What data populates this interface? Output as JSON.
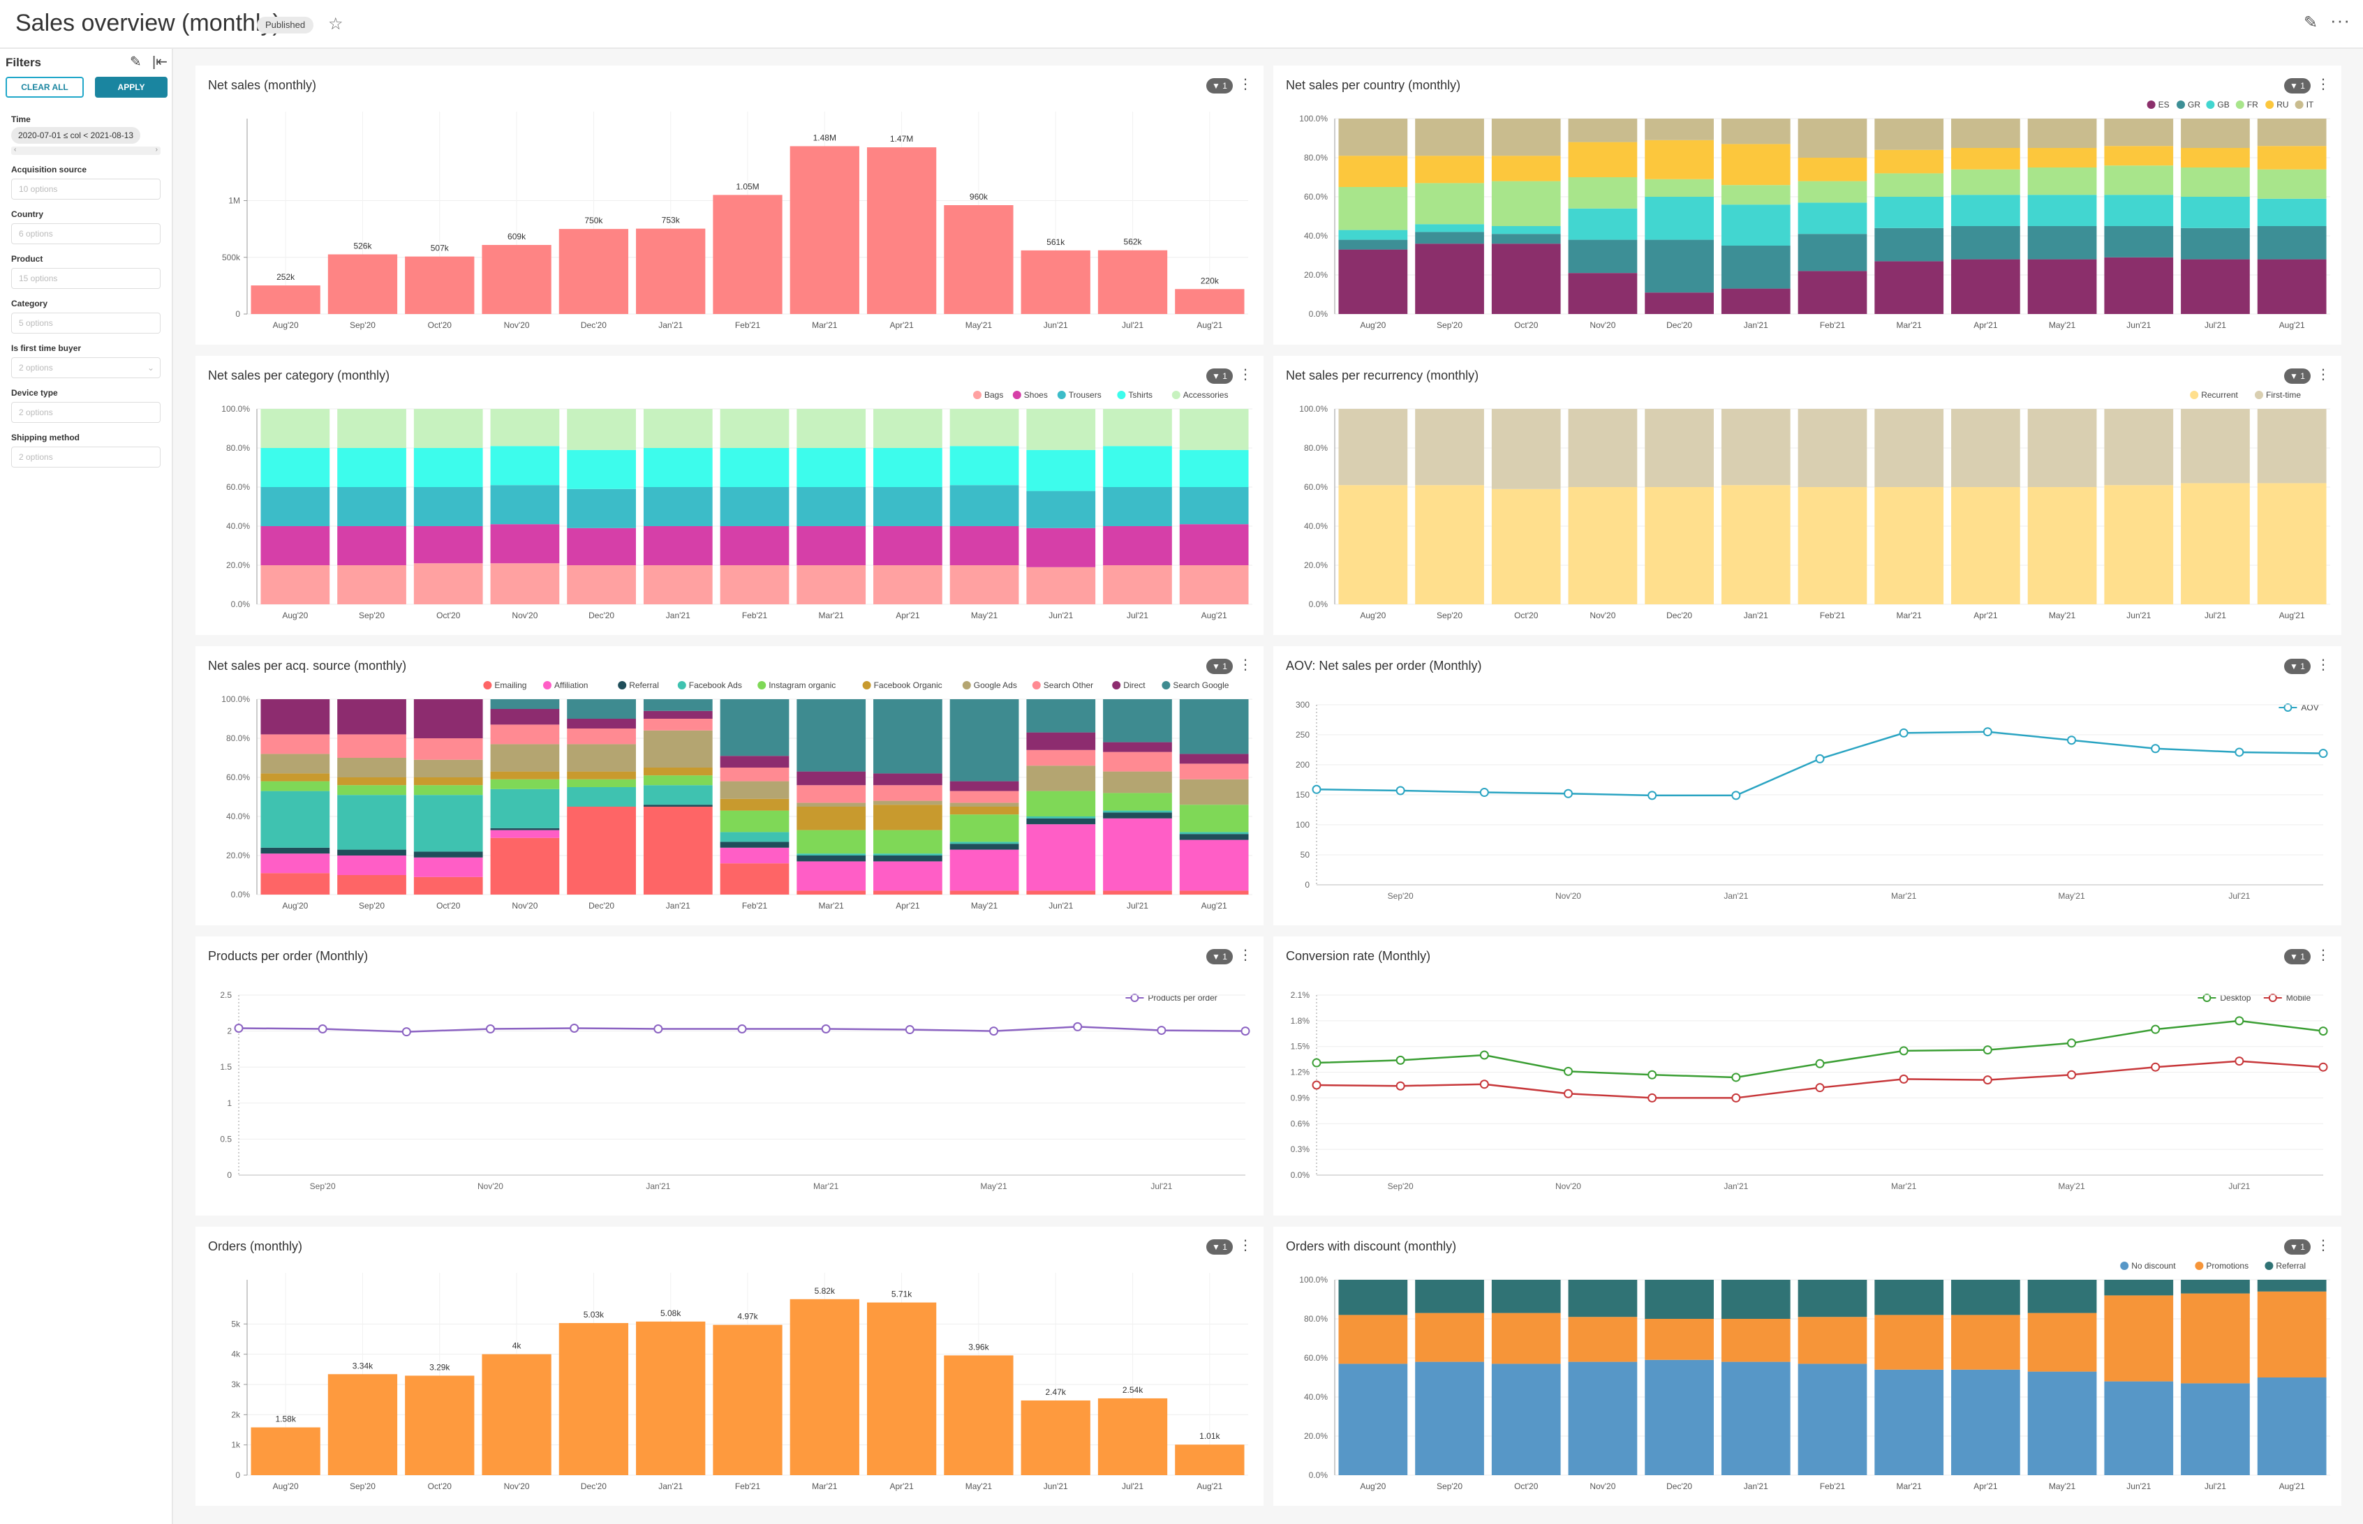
{
  "header": {
    "title": "Sales overview (monthly)",
    "status": "Published",
    "star_icon": "star-icon",
    "edit_icon": "pencil-icon",
    "more_icon": "ellipsis-icon"
  },
  "filters": {
    "title": "Filters",
    "clear_label": "CLEAR ALL",
    "apply_label": "APPLY",
    "items": [
      {
        "label": "Time",
        "value": "2020-07-01 ≤ col < 2021-08-13"
      },
      {
        "label": "Acquisition source",
        "placeholder": "10 options"
      },
      {
        "label": "Country",
        "placeholder": "6 options"
      },
      {
        "label": "Product",
        "placeholder": "15 options"
      },
      {
        "label": "Category",
        "placeholder": "5 options"
      },
      {
        "label": "Is first time buyer",
        "placeholder": "2 options"
      },
      {
        "label": "Device type",
        "placeholder": "2 options"
      },
      {
        "label": "Shipping method",
        "placeholder": "2 options"
      }
    ]
  },
  "panel_badge": "1",
  "chart_data": [
    {
      "id": "net-sales",
      "type": "bar",
      "title": "Net sales (monthly)",
      "categories": [
        "Aug'20",
        "Sep'20",
        "Oct'20",
        "Nov'20",
        "Dec'20",
        "Jan'21",
        "Feb'21",
        "Mar'21",
        "Apr'21",
        "May'21",
        "Jun'21",
        "Jul'21",
        "Aug'21"
      ],
      "values": [
        252000,
        526000,
        507000,
        609000,
        750000,
        753000,
        1050000,
        1480000,
        1470000,
        960000,
        561000,
        562000,
        220000
      ],
      "labels": [
        "252k",
        "526k",
        "507k",
        "609k",
        "750k",
        "753k",
        "1.05M",
        "1.48M",
        "1.47M",
        "960k",
        "561k",
        "562k",
        "220k"
      ],
      "ylim": [
        0,
        1600000
      ],
      "yticks": [
        0,
        500000,
        1000000
      ],
      "ytick_labels": [
        "0",
        "500k",
        "1M"
      ],
      "color": "#fe8484"
    },
    {
      "id": "country",
      "type": "bar",
      "stacked": true,
      "title": "Net sales per country (monthly)",
      "categories": [
        "Aug'20",
        "Sep'20",
        "Oct'20",
        "Nov'20",
        "Dec'20",
        "Jan'21",
        "Feb'21",
        "Mar'21",
        "Apr'21",
        "May'21",
        "Jun'21",
        "Jul'21",
        "Aug'21"
      ],
      "legend": "top-right",
      "yticks": [
        "0.0%",
        "20.0%",
        "40.0%",
        "60.0%",
        "80.0%",
        "100.0%"
      ],
      "series": [
        {
          "name": "ES",
          "color": "#8b2f6b",
          "values": [
            33,
            36,
            36,
            21,
            11,
            13,
            22,
            27,
            28,
            28,
            29,
            28,
            28
          ]
        },
        {
          "name": "GR",
          "color": "#3d8f96",
          "values": [
            5,
            6,
            5,
            17,
            27,
            22,
            19,
            17,
            17,
            17,
            16,
            16,
            17
          ]
        },
        {
          "name": "GB",
          "color": "#42d6d0",
          "values": [
            5,
            4,
            4,
            16,
            22,
            21,
            16,
            16,
            16,
            16,
            16,
            16,
            14
          ]
        },
        {
          "name": "FR",
          "color": "#a8e58b",
          "values": [
            22,
            21,
            23,
            16,
            9,
            10,
            11,
            12,
            13,
            14,
            15,
            15,
            15
          ]
        },
        {
          "name": "RU",
          "color": "#fcc73d",
          "values": [
            16,
            14,
            13,
            18,
            20,
            21,
            12,
            12,
            11,
            10,
            10,
            10,
            12
          ]
        },
        {
          "name": "IT",
          "color": "#c9bc8e",
          "values": [
            19,
            19,
            19,
            12,
            11,
            13,
            20,
            16,
            15,
            15,
            14,
            15,
            14
          ]
        }
      ]
    },
    {
      "id": "category",
      "type": "bar",
      "stacked": true,
      "title": "Net sales per category (monthly)",
      "categories": [
        "Aug'20",
        "Sep'20",
        "Oct'20",
        "Nov'20",
        "Dec'20",
        "Jan'21",
        "Feb'21",
        "Mar'21",
        "Apr'21",
        "May'21",
        "Jun'21",
        "Jul'21",
        "Aug'21"
      ],
      "legend": "top-right",
      "yticks": [
        "0.0%",
        "20.0%",
        "40.0%",
        "60.0%",
        "80.0%",
        "100.0%"
      ],
      "series": [
        {
          "name": "Bags",
          "color": "#ffa1a1",
          "values": [
            20,
            20,
            21,
            21,
            20,
            20,
            20,
            20,
            20,
            20,
            19,
            20,
            20
          ]
        },
        {
          "name": "Shoes",
          "color": "#d63fa8",
          "values": [
            20,
            20,
            19,
            20,
            19,
            20,
            20,
            20,
            20,
            20,
            20,
            20,
            21
          ]
        },
        {
          "name": "Trousers",
          "color": "#3cbcc8",
          "values": [
            20,
            20,
            20,
            20,
            20,
            20,
            20,
            20,
            20,
            21,
            19,
            20,
            19
          ]
        },
        {
          "name": "Tshirts",
          "color": "#3dfcec",
          "values": [
            20,
            20,
            20,
            20,
            20,
            20,
            20,
            20,
            20,
            20,
            21,
            21,
            19
          ]
        },
        {
          "name": "Accessories",
          "color": "#c7f2bf",
          "values": [
            20,
            20,
            20,
            19,
            21,
            20,
            20,
            20,
            20,
            19,
            21,
            19,
            21
          ]
        }
      ]
    },
    {
      "id": "recurrency",
      "type": "bar",
      "stacked": true,
      "title": "Net sales per recurrency (monthly)",
      "categories": [
        "Aug'20",
        "Sep'20",
        "Oct'20",
        "Nov'20",
        "Dec'20",
        "Jan'21",
        "Feb'21",
        "Mar'21",
        "Apr'21",
        "May'21",
        "Jun'21",
        "Jul'21",
        "Aug'21"
      ],
      "legend": "top-right",
      "yticks": [
        "0.0%",
        "20.0%",
        "40.0%",
        "60.0%",
        "80.0%",
        "100.0%"
      ],
      "series": [
        {
          "name": "Recurrent",
          "color": "#ffdf8d",
          "values": [
            61,
            61,
            59,
            60,
            60,
            61,
            60,
            60,
            60,
            60,
            61,
            62,
            62
          ]
        },
        {
          "name": "First-time",
          "color": "#d9cfb1",
          "values": [
            39,
            39,
            41,
            40,
            40,
            39,
            40,
            40,
            40,
            40,
            39,
            38,
            38
          ]
        }
      ]
    },
    {
      "id": "acq",
      "type": "bar",
      "stacked": true,
      "title": "Net sales per acq. source (monthly)",
      "categories": [
        "Aug'20",
        "Sep'20",
        "Oct'20",
        "Nov'20",
        "Dec'20",
        "Jan'21",
        "Feb'21",
        "Mar'21",
        "Apr'21",
        "May'21",
        "Jun'21",
        "Jul'21",
        "Aug'21"
      ],
      "legend": "top-right",
      "yticks": [
        "0.0%",
        "20.0%",
        "40.0%",
        "60.0%",
        "80.0%",
        "100.0%"
      ],
      "series": [
        {
          "name": "Emailing",
          "color": "#fe6566",
          "values": [
            11,
            10,
            9,
            29,
            45,
            45,
            16,
            2,
            2,
            2,
            2,
            2,
            2
          ]
        },
        {
          "name": "Affiliation",
          "color": "#ff5ec6",
          "values": [
            10,
            10,
            10,
            4,
            0,
            0,
            8,
            15,
            15,
            21,
            34,
            37,
            26
          ]
        },
        {
          "name": "Referral",
          "color": "#1f4e5a",
          "values": [
            3,
            3,
            3,
            1,
            0,
            1,
            3,
            3,
            3,
            3,
            3,
            3,
            3
          ]
        },
        {
          "name": "Facebook Ads",
          "color": "#3fc2b0",
          "values": [
            29,
            28,
            29,
            20,
            10,
            10,
            5,
            1,
            1,
            1,
            1,
            1,
            1
          ]
        },
        {
          "name": "Instagram organic",
          "color": "#7fd857",
          "values": [
            5,
            5,
            5,
            5,
            4,
            5,
            11,
            12,
            12,
            14,
            13,
            9,
            14
          ]
        },
        {
          "name": "Facebook Organic",
          "color": "#c89a2e",
          "values": [
            4,
            4,
            4,
            4,
            4,
            4,
            6,
            12,
            13,
            4,
            0,
            0,
            0
          ]
        },
        {
          "name": "Google Ads",
          "color": "#b4a571",
          "values": [
            10,
            10,
            9,
            14,
            14,
            19,
            9,
            2,
            2,
            2,
            13,
            11,
            13
          ]
        },
        {
          "name": "Search Other",
          "color": "#ff8a92",
          "values": [
            10,
            12,
            11,
            10,
            8,
            6,
            7,
            9,
            8,
            6,
            8,
            10,
            8
          ]
        },
        {
          "name": "Direct",
          "color": "#8d2c6f",
          "values": [
            18,
            18,
            20,
            8,
            5,
            4,
            6,
            7,
            6,
            5,
            9,
            5,
            5
          ]
        },
        {
          "name": "Search Google",
          "color": "#3e8b90",
          "values": [
            0,
            0,
            0,
            5,
            10,
            6,
            29,
            37,
            38,
            42,
            17,
            22,
            28
          ]
        }
      ]
    },
    {
      "id": "aov",
      "type": "line",
      "title": "AOV: Net sales per order (Monthly)",
      "legend": "top-right",
      "ylim": [
        0,
        300
      ],
      "yticks": [
        0,
        50,
        100,
        150,
        200,
        250,
        300
      ],
      "xticks": [
        "Sep'20",
        "Nov'20",
        "Jan'21",
        "Mar'21",
        "May'21",
        "Jul'21"
      ],
      "series": [
        {
          "name": "AOV",
          "color": "#2aa4c2",
          "values": [
            159,
            157,
            154,
            152,
            149,
            149,
            210,
            253,
            255,
            241,
            227,
            221,
            219
          ]
        }
      ]
    },
    {
      "id": "products",
      "type": "line",
      "title": "Products per order (Monthly)",
      "legend": "top-right",
      "ylim": [
        0,
        2.5
      ],
      "yticks": [
        0,
        0.5,
        1,
        1.5,
        2,
        2.5
      ],
      "ytick_labels": [
        "0",
        "0.5",
        "1",
        "1.5",
        "2",
        "2.5"
      ],
      "xticks": [
        "Sep'20",
        "Nov'20",
        "Jan'21",
        "Mar'21",
        "May'21",
        "Jul'21"
      ],
      "series": [
        {
          "name": "Products per order",
          "color": "#8b62c2",
          "values": [
            2.04,
            2.03,
            1.99,
            2.03,
            2.04,
            2.03,
            2.03,
            2.03,
            2.02,
            2.0,
            2.06,
            2.01,
            2.0
          ]
        }
      ]
    },
    {
      "id": "conversion",
      "type": "line",
      "title": "Conversion rate (Monthly)",
      "legend": "top-right",
      "ylim": [
        0,
        2.1
      ],
      "yticks": [
        0,
        0.3,
        0.6,
        0.9,
        1.2,
        1.5,
        1.8,
        2.1
      ],
      "ytick_labels": [
        "0.0%",
        "0.3%",
        "0.6%",
        "0.9%",
        "1.2%",
        "1.5%",
        "1.8%",
        "2.1%"
      ],
      "xticks": [
        "Sep'20",
        "Nov'20",
        "Jan'21",
        "Mar'21",
        "May'21",
        "Jul'21"
      ],
      "series": [
        {
          "name": "Desktop",
          "color": "#3a9e33",
          "values": [
            1.31,
            1.34,
            1.4,
            1.21,
            1.17,
            1.14,
            1.3,
            1.45,
            1.46,
            1.54,
            1.7,
            1.8,
            1.68
          ]
        },
        {
          "name": "Mobile",
          "color": "#c7373a",
          "values": [
            1.05,
            1.04,
            1.06,
            0.95,
            0.9,
            0.9,
            1.02,
            1.12,
            1.11,
            1.17,
            1.26,
            1.33,
            1.26
          ]
        }
      ]
    },
    {
      "id": "orders",
      "type": "bar",
      "title": "Orders (monthly)",
      "categories": [
        "Aug'20",
        "Sep'20",
        "Oct'20",
        "Nov'20",
        "Dec'20",
        "Jan'21",
        "Feb'21",
        "Mar'21",
        "Apr'21",
        "May'21",
        "Jun'21",
        "Jul'21",
        "Aug'21"
      ],
      "values": [
        1580,
        3340,
        3290,
        4000,
        5030,
        5080,
        4970,
        5820,
        5710,
        3960,
        2470,
        2540,
        1010
      ],
      "labels": [
        "1.58k",
        "3.34k",
        "3.29k",
        "4k",
        "5.03k",
        "5.08k",
        "4.97k",
        "5.82k",
        "5.71k",
        "3.96k",
        "2.47k",
        "2.54k",
        "1.01k"
      ],
      "ylim": [
        0,
        6000
      ],
      "yticks": [
        0,
        1000,
        2000,
        3000,
        4000,
        5000
      ],
      "ytick_labels": [
        "0",
        "1k",
        "2k",
        "3k",
        "4k",
        "5k"
      ],
      "color": "#fe9a3e"
    },
    {
      "id": "discount",
      "type": "bar",
      "stacked": true,
      "title": "Orders with discount (monthly)",
      "categories": [
        "Aug'20",
        "Sep'20",
        "Oct'20",
        "Nov'20",
        "Dec'20",
        "Jan'21",
        "Feb'21",
        "Mar'21",
        "Apr'21",
        "May'21",
        "Jun'21",
        "Jul'21",
        "Aug'21"
      ],
      "legend": "top-right",
      "yticks": [
        "0.0%",
        "20.0%",
        "40.0%",
        "60.0%",
        "80.0%",
        "100.0%"
      ],
      "series": [
        {
          "name": "No discount",
          "color": "#5797c7",
          "values": [
            57,
            58,
            57,
            58,
            59,
            58,
            57,
            54,
            54,
            53,
            48,
            47,
            50
          ]
        },
        {
          "name": "Promotions",
          "color": "#f69539",
          "values": [
            25,
            25,
            26,
            23,
            21,
            22,
            24,
            28,
            28,
            30,
            44,
            46,
            44
          ]
        },
        {
          "name": "Referral",
          "color": "#307375",
          "values": [
            18,
            17,
            17,
            19,
            20,
            20,
            19,
            18,
            18,
            17,
            8,
            7,
            6
          ]
        }
      ]
    }
  ]
}
